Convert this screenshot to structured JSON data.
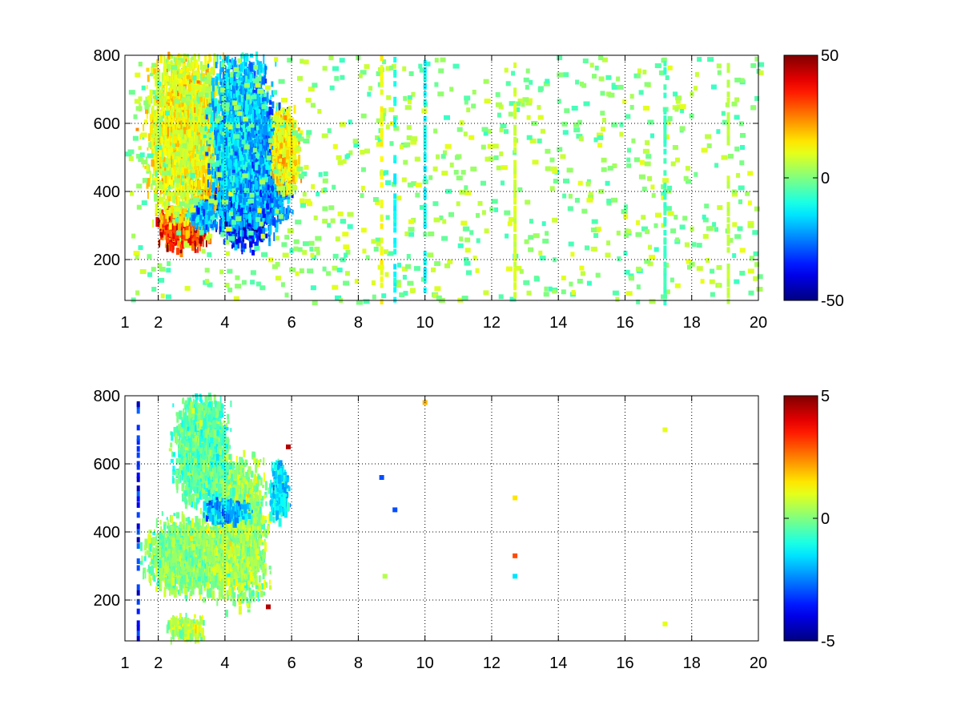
{
  "chart_data": [
    {
      "type": "heatmap",
      "title": "",
      "xlabel": "",
      "ylabel": "",
      "xlim": [
        1,
        20
      ],
      "ylim": [
        80,
        800
      ],
      "xticks": [
        1,
        2,
        4,
        6,
        8,
        10,
        12,
        14,
        16,
        18,
        20
      ],
      "xtick_labels": [
        "1",
        "2",
        "4",
        "6",
        "8",
        "10",
        "12",
        "14",
        "16",
        "18",
        "20"
      ],
      "yticks": [
        200,
        400,
        600,
        800
      ],
      "ytick_labels": [
        "200",
        "400",
        "600",
        "800"
      ],
      "grid": true,
      "colormap": "jet",
      "clim": [
        -50,
        50
      ],
      "colorbar_ticks": [
        -50,
        0,
        50
      ],
      "colorbar_labels": [
        "-50",
        "0",
        "50"
      ],
      "features": [
        {
          "kind": "blob",
          "x": 2.7,
          "y": 290,
          "value": 45,
          "sx": 0.55,
          "sy": 45
        },
        {
          "kind": "blob",
          "x": 2.8,
          "y": 580,
          "value": 15,
          "sx": 0.9,
          "sy": 200
        },
        {
          "kind": "blob",
          "x": 3.8,
          "y": 400,
          "value": 20,
          "sx": 0.5,
          "sy": 40
        },
        {
          "kind": "blob",
          "x": 4.6,
          "y": 350,
          "value": -45,
          "sx": 0.6,
          "sy": 80
        },
        {
          "kind": "blob",
          "x": 4.5,
          "y": 560,
          "value": -25,
          "sx": 0.7,
          "sy": 190
        },
        {
          "kind": "blob",
          "x": 5.3,
          "y": 470,
          "value": -30,
          "sx": 0.45,
          "sy": 120
        },
        {
          "kind": "blob",
          "x": 3.3,
          "y": 330,
          "value": -28,
          "sx": 0.3,
          "sy": 30
        },
        {
          "kind": "blob",
          "x": 5.8,
          "y": 520,
          "value": 18,
          "sx": 0.3,
          "sy": 90
        },
        {
          "kind": "column",
          "x": 8.7,
          "value": 15
        },
        {
          "kind": "column",
          "x": 9.1,
          "value": -15
        },
        {
          "kind": "column",
          "x": 10.0,
          "value": -15
        },
        {
          "kind": "column",
          "x": 12.7,
          "value": 10
        },
        {
          "kind": "column",
          "x": 17.2,
          "value": -8
        },
        {
          "kind": "column",
          "x": 19.1,
          "value": 8
        }
      ]
    },
    {
      "type": "heatmap",
      "title": "",
      "xlabel": "",
      "ylabel": "",
      "xlim": [
        1,
        20
      ],
      "ylim": [
        80,
        800
      ],
      "xticks": [
        1,
        2,
        4,
        6,
        8,
        10,
        12,
        14,
        16,
        18,
        20
      ],
      "xtick_labels": [
        "1",
        "2",
        "4",
        "6",
        "8",
        "10",
        "12",
        "14",
        "16",
        "18",
        "20"
      ],
      "yticks": [
        200,
        400,
        600,
        800
      ],
      "ytick_labels": [
        "200",
        "400",
        "600",
        "800"
      ],
      "grid": true,
      "colormap": "jet",
      "clim": [
        -5,
        5
      ],
      "colorbar_ticks": [
        -5,
        0,
        5
      ],
      "colorbar_labels": [
        "-5",
        "0",
        "5"
      ],
      "features": [
        {
          "kind": "blob",
          "x": 3.0,
          "y": 330,
          "value": 0.2,
          "sx": 1.0,
          "sy": 80
        },
        {
          "kind": "blob",
          "x": 4.4,
          "y": 400,
          "value": 0.5,
          "sx": 0.6,
          "sy": 150
        },
        {
          "kind": "blob",
          "x": 3.3,
          "y": 640,
          "value": -0.5,
          "sx": 0.6,
          "sy": 120
        },
        {
          "kind": "blob",
          "x": 4.0,
          "y": 460,
          "value": -2.5,
          "sx": 0.5,
          "sy": 25
        },
        {
          "kind": "blob",
          "x": 5.6,
          "y": 520,
          "value": -2.0,
          "sx": 0.2,
          "sy": 60
        },
        {
          "kind": "blob",
          "x": 2.8,
          "y": 115,
          "value": 0.8,
          "sx": 0.4,
          "sy": 25
        },
        {
          "kind": "column",
          "x": 1.4,
          "value": -4.5
        },
        {
          "kind": "spot",
          "x": 8.8,
          "y": 270,
          "value": 0.5
        },
        {
          "kind": "spot",
          "x": 9.1,
          "y": 465,
          "value": -3
        },
        {
          "kind": "spot",
          "x": 8.7,
          "y": 560,
          "value": -3
        },
        {
          "kind": "spot",
          "x": 12.7,
          "y": 330,
          "value": 3
        },
        {
          "kind": "spot",
          "x": 12.7,
          "y": 270,
          "value": -1.5
        },
        {
          "kind": "spot",
          "x": 12.7,
          "y": 500,
          "value": 1.5
        },
        {
          "kind": "spot",
          "x": 17.2,
          "y": 700,
          "value": 1
        },
        {
          "kind": "spot",
          "x": 17.2,
          "y": 130,
          "value": 1
        },
        {
          "kind": "spot",
          "x": 10.0,
          "y": 780,
          "value": 2
        },
        {
          "kind": "spot",
          "x": 5.9,
          "y": 650,
          "value": 4.5
        },
        {
          "kind": "spot",
          "x": 5.3,
          "y": 180,
          "value": 4.5
        }
      ]
    }
  ]
}
